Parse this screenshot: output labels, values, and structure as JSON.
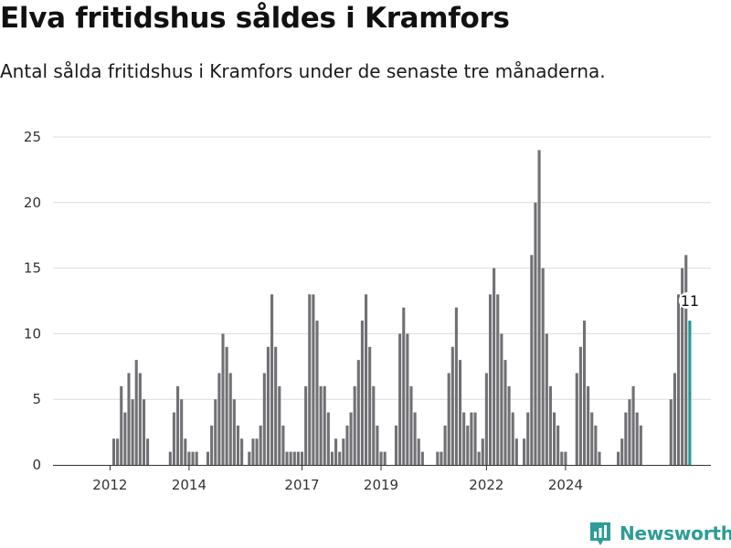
{
  "title": "Elva fritidshus såldes i Kramfors",
  "subtitle": "Antal sålda fritidshus i Kramfors under de senaste tre månaderna.",
  "brand": {
    "name": "Newsworthy",
    "color": "#2e9c96",
    "logo_icon": "newsworthy-logo-icon"
  },
  "colors": {
    "bar": "#717074",
    "highlight": "#1b9a94",
    "grid": "#dcdcdc",
    "axis": "#333333"
  },
  "chart_data": {
    "type": "bar",
    "title": "Elva fritidshus såldes i Kramfors",
    "subtitle": "Antal sålda fritidshus i Kramfors under de senaste tre månaderna.",
    "xlabel": "",
    "ylabel": "",
    "ylim": [
      0,
      25
    ],
    "yticks": [
      0,
      5,
      10,
      15,
      20,
      25
    ],
    "x_tick_labels": [
      "2012",
      "2014",
      "2017",
      "2019",
      "2022",
      "2024"
    ],
    "x_tick_index": [
      7,
      28,
      58,
      79,
      107,
      128
    ],
    "grid": "horizontal",
    "values": [
      0,
      0,
      0,
      0,
      0,
      0,
      0,
      0,
      2,
      2,
      6,
      4,
      7,
      5,
      8,
      7,
      5,
      2,
      0,
      0,
      0,
      0,
      0,
      1,
      4,
      6,
      5,
      2,
      1,
      1,
      1,
      0,
      0,
      1,
      3,
      5,
      7,
      10,
      9,
      7,
      5,
      3,
      2,
      0,
      1,
      2,
      2,
      3,
      7,
      9,
      13,
      9,
      6,
      3,
      1,
      1,
      1,
      1,
      1,
      6,
      13,
      13,
      11,
      6,
      6,
      4,
      1,
      2,
      1,
      2,
      3,
      4,
      6,
      8,
      11,
      13,
      9,
      6,
      3,
      1,
      1,
      0,
      0,
      3,
      10,
      12,
      10,
      6,
      4,
      2,
      1,
      0,
      0,
      0,
      1,
      1,
      3,
      7,
      9,
      12,
      8,
      4,
      3,
      4,
      4,
      1,
      2,
      7,
      13,
      15,
      13,
      10,
      8,
      6,
      4,
      2,
      0,
      2,
      4,
      16,
      20,
      24,
      15,
      10,
      6,
      4,
      3,
      1,
      1,
      0,
      0,
      7,
      9,
      11,
      6,
      4,
      3,
      1,
      0,
      0,
      0,
      0,
      1,
      2,
      4,
      5,
      6,
      4,
      3,
      0,
      0,
      0,
      0,
      0,
      0,
      0,
      5,
      7,
      13,
      15,
      16,
      11
    ],
    "highlight": {
      "index": 161,
      "value": 11,
      "label": "11"
    }
  }
}
